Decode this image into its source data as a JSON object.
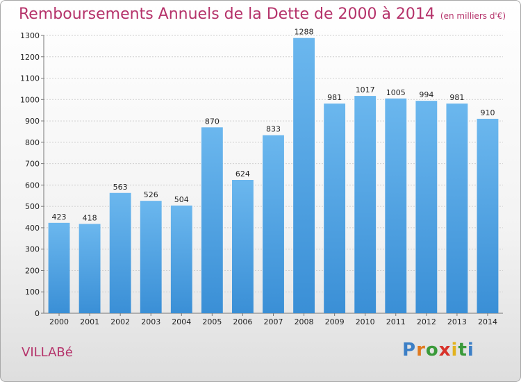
{
  "chart_data": {
    "type": "bar",
    "title": "Remboursements Annuels de la Dette de 2000 à 2014",
    "subtitle": "(en milliers d'€)",
    "categories": [
      "2000",
      "2001",
      "2002",
      "2003",
      "2004",
      "2005",
      "2006",
      "2007",
      "2008",
      "2009",
      "2010",
      "2011",
      "2012",
      "2013",
      "2014"
    ],
    "values": [
      423,
      418,
      563,
      526,
      504,
      870,
      624,
      833,
      1288,
      981,
      1017,
      1005,
      994,
      981,
      910
    ],
    "ylim": [
      0,
      1300
    ],
    "yticks": [
      0,
      100,
      200,
      300,
      400,
      500,
      600,
      700,
      800,
      900,
      1000,
      1100,
      1200,
      1300
    ],
    "grid": true,
    "bar_color": "#3a8fd6",
    "bar_color_light": "#6bb7ee"
  },
  "footer": {
    "location": "VILLABé",
    "logo_text": [
      "P",
      "r",
      "o",
      "x",
      "i",
      "t",
      "i"
    ],
    "logo_colors": [
      "#3c7fc6",
      "#e07a20",
      "#3a9a3a",
      "#d8322a",
      "#e2b21e",
      "#3a9a3a",
      "#3c7fc6"
    ]
  },
  "colors": {
    "title": "#b5326a",
    "grid": "#cfcfcf",
    "axis": "#777777"
  }
}
